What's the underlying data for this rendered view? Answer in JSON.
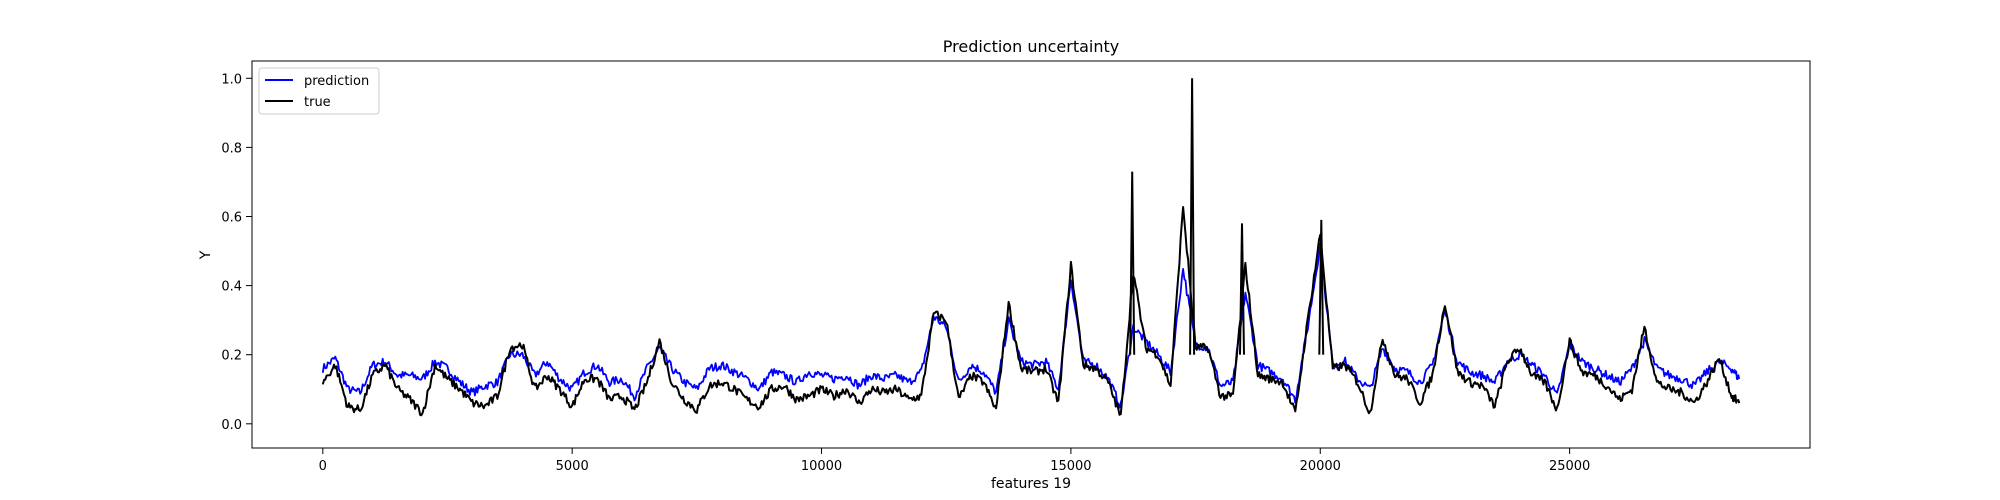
{
  "chart_data": {
    "type": "line",
    "title": "Prediction uncertainty",
    "xlabel": "features 19",
    "ylabel": "Y",
    "xlim": [
      -1420,
      29820
    ],
    "ylim": [
      -0.07,
      1.05
    ],
    "x_ticks": [
      0,
      5000,
      10000,
      15000,
      20000,
      25000
    ],
    "x_tick_labels": [
      "0",
      "5000",
      "10000",
      "15000",
      "20000",
      "25000"
    ],
    "y_ticks": [
      0.0,
      0.2,
      0.4,
      0.6,
      0.8,
      1.0
    ],
    "y_tick_labels": [
      "0.0",
      "0.2",
      "0.4",
      "0.6",
      "0.8",
      "1.0"
    ],
    "grid": false,
    "legend_position": "top-left",
    "series": [
      {
        "name": "prediction",
        "color": "#0000ff",
        "x": [
          0,
          250,
          500,
          750,
          1000,
          1250,
          1500,
          1750,
          2000,
          2250,
          2500,
          2750,
          3000,
          3250,
          3500,
          3750,
          4000,
          4250,
          4500,
          4750,
          5000,
          5250,
          5500,
          5750,
          6000,
          6250,
          6500,
          6750,
          7000,
          7250,
          7500,
          7750,
          8000,
          8250,
          8500,
          8750,
          9000,
          9250,
          9500,
          9750,
          10000,
          10250,
          10500,
          10750,
          11000,
          11250,
          11500,
          11750,
          12000,
          12250,
          12500,
          12750,
          13000,
          13250,
          13500,
          13750,
          14000,
          14250,
          14500,
          14750,
          15000,
          15250,
          15500,
          15750,
          16000,
          16250,
          16500,
          16750,
          17000,
          17250,
          17500,
          17750,
          18000,
          18250,
          18500,
          18750,
          19000,
          19250,
          19500,
          19750,
          20000,
          20250,
          20500,
          20750,
          21000,
          21250,
          21500,
          21750,
          22000,
          22250,
          22500,
          22750,
          23000,
          23250,
          23500,
          23750,
          24000,
          24250,
          24500,
          24750,
          25000,
          25250,
          25500,
          25750,
          26000,
          26250,
          26500,
          26750,
          27000,
          27250,
          27500,
          27750,
          28000,
          28250,
          28400
        ],
        "y": [
          0.16,
          0.19,
          0.1,
          0.09,
          0.17,
          0.18,
          0.14,
          0.14,
          0.13,
          0.18,
          0.16,
          0.12,
          0.09,
          0.11,
          0.12,
          0.2,
          0.2,
          0.14,
          0.18,
          0.13,
          0.1,
          0.15,
          0.17,
          0.12,
          0.13,
          0.08,
          0.16,
          0.22,
          0.16,
          0.12,
          0.1,
          0.16,
          0.17,
          0.15,
          0.13,
          0.1,
          0.15,
          0.14,
          0.12,
          0.15,
          0.14,
          0.13,
          0.14,
          0.11,
          0.14,
          0.13,
          0.14,
          0.12,
          0.15,
          0.31,
          0.28,
          0.12,
          0.17,
          0.15,
          0.09,
          0.3,
          0.18,
          0.17,
          0.18,
          0.1,
          0.42,
          0.18,
          0.17,
          0.13,
          0.05,
          0.28,
          0.24,
          0.2,
          0.15,
          0.45,
          0.23,
          0.22,
          0.11,
          0.12,
          0.38,
          0.17,
          0.15,
          0.13,
          0.07,
          0.28,
          0.52,
          0.17,
          0.18,
          0.13,
          0.1,
          0.22,
          0.16,
          0.15,
          0.12,
          0.17,
          0.33,
          0.18,
          0.15,
          0.14,
          0.12,
          0.18,
          0.2,
          0.17,
          0.14,
          0.08,
          0.23,
          0.18,
          0.16,
          0.14,
          0.12,
          0.16,
          0.24,
          0.16,
          0.14,
          0.13,
          0.11,
          0.15,
          0.18,
          0.16,
          0.13
        ]
      },
      {
        "name": "true",
        "color": "#000000",
        "x": [
          0,
          250,
          500,
          750,
          1000,
          1250,
          1500,
          1750,
          2000,
          2250,
          2500,
          2750,
          3000,
          3250,
          3500,
          3750,
          4000,
          4250,
          4500,
          4750,
          5000,
          5250,
          5500,
          5750,
          6000,
          6250,
          6500,
          6750,
          7000,
          7250,
          7500,
          7750,
          8000,
          8250,
          8500,
          8750,
          9000,
          9250,
          9500,
          9750,
          10000,
          10250,
          10500,
          10750,
          11000,
          11250,
          11500,
          11750,
          12000,
          12250,
          12500,
          12750,
          13000,
          13250,
          13500,
          13750,
          14000,
          14250,
          14500,
          14750,
          15000,
          15250,
          15500,
          15750,
          16000,
          16250,
          16500,
          16750,
          17000,
          17250,
          17500,
          17750,
          18000,
          18250,
          18500,
          18750,
          19000,
          19250,
          19500,
          19750,
          20000,
          20250,
          20500,
          20750,
          21000,
          21250,
          21500,
          21750,
          22000,
          22250,
          22500,
          22750,
          23000,
          23250,
          23500,
          23750,
          24000,
          24250,
          24500,
          24750,
          25000,
          25250,
          25500,
          25750,
          26000,
          26250,
          26500,
          26750,
          27000,
          27250,
          27500,
          27750,
          28000,
          28250,
          28400
        ],
        "y": [
          0.12,
          0.17,
          0.05,
          0.04,
          0.14,
          0.17,
          0.1,
          0.07,
          0.03,
          0.17,
          0.13,
          0.1,
          0.06,
          0.05,
          0.08,
          0.22,
          0.23,
          0.1,
          0.14,
          0.1,
          0.05,
          0.13,
          0.13,
          0.07,
          0.08,
          0.04,
          0.12,
          0.24,
          0.12,
          0.07,
          0.04,
          0.11,
          0.12,
          0.1,
          0.07,
          0.05,
          0.1,
          0.11,
          0.07,
          0.08,
          0.1,
          0.08,
          0.1,
          0.06,
          0.1,
          0.09,
          0.1,
          0.07,
          0.08,
          0.32,
          0.3,
          0.07,
          0.14,
          0.12,
          0.04,
          0.35,
          0.16,
          0.15,
          0.16,
          0.06,
          0.46,
          0.17,
          0.16,
          0.12,
          0.02,
          0.44,
          0.22,
          0.2,
          0.11,
          0.63,
          0.22,
          0.22,
          0.08,
          0.08,
          0.46,
          0.14,
          0.13,
          0.12,
          0.03,
          0.3,
          0.55,
          0.16,
          0.17,
          0.12,
          0.03,
          0.25,
          0.14,
          0.13,
          0.06,
          0.14,
          0.35,
          0.15,
          0.12,
          0.11,
          0.05,
          0.18,
          0.22,
          0.14,
          0.12,
          0.04,
          0.24,
          0.15,
          0.14,
          0.11,
          0.07,
          0.1,
          0.28,
          0.12,
          0.1,
          0.09,
          0.06,
          0.12,
          0.19,
          0.08,
          0.06
        ]
      }
    ],
    "annotations": [
      {
        "series": "true",
        "x": 16230,
        "y": 0.73
      },
      {
        "series": "true",
        "x": 17430,
        "y": 1.0
      },
      {
        "series": "true",
        "x": 18430,
        "y": 0.58
      },
      {
        "series": "true",
        "x": 20020,
        "y": 0.59
      }
    ]
  }
}
